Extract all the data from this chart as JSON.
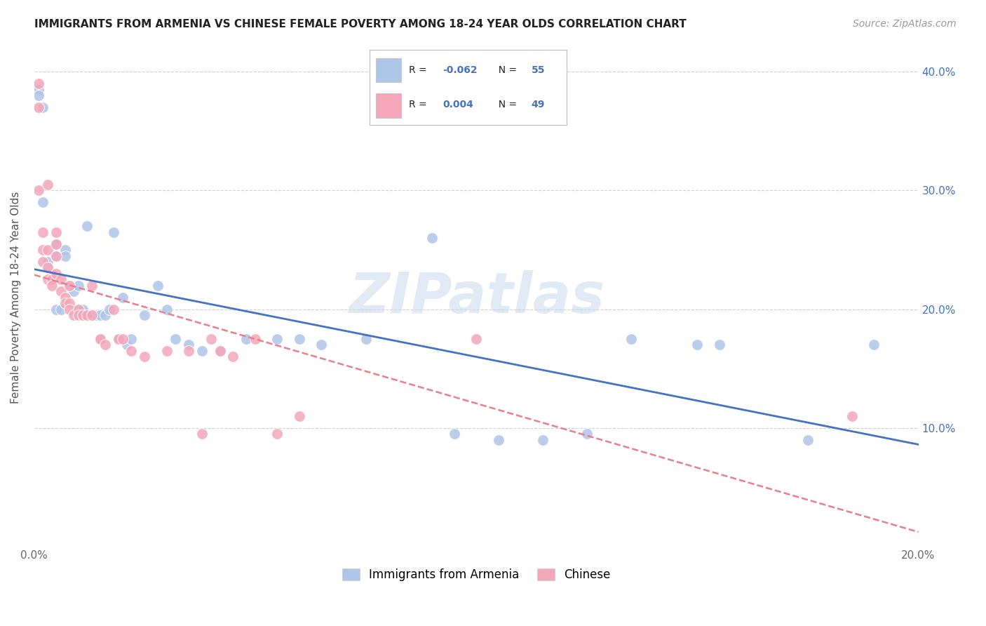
{
  "title": "IMMIGRANTS FROM ARMENIA VS CHINESE FEMALE POVERTY AMONG 18-24 YEAR OLDS CORRELATION CHART",
  "source": "Source: ZipAtlas.com",
  "ylabel": "Female Poverty Among 18-24 Year Olds",
  "xlim": [
    0.0,
    0.2
  ],
  "ylim": [
    0.0,
    0.42
  ],
  "x_ticks": [
    0.0,
    0.02,
    0.04,
    0.06,
    0.08,
    0.1,
    0.12,
    0.14,
    0.16,
    0.18,
    0.2
  ],
  "y_ticks": [
    0.0,
    0.1,
    0.2,
    0.3,
    0.4
  ],
  "legend_entries": [
    {
      "label": "Immigrants from Armenia",
      "color": "#aec6e8",
      "R": "-0.062",
      "N": "55"
    },
    {
      "label": "Chinese",
      "color": "#f4a7b9",
      "R": "0.004",
      "N": "49"
    }
  ],
  "blue_scatter_x": [
    0.001,
    0.001,
    0.002,
    0.002,
    0.003,
    0.003,
    0.003,
    0.004,
    0.004,
    0.005,
    0.005,
    0.005,
    0.006,
    0.007,
    0.007,
    0.008,
    0.009,
    0.01,
    0.01,
    0.011,
    0.012,
    0.012,
    0.013,
    0.013,
    0.014,
    0.015,
    0.016,
    0.017,
    0.018,
    0.019,
    0.02,
    0.021,
    0.022,
    0.025,
    0.028,
    0.03,
    0.032,
    0.035,
    0.038,
    0.042,
    0.048,
    0.055,
    0.06,
    0.065,
    0.075,
    0.09,
    0.095,
    0.105,
    0.115,
    0.125,
    0.135,
    0.15,
    0.155,
    0.175,
    0.19
  ],
  "blue_scatter_y": [
    0.385,
    0.38,
    0.37,
    0.29,
    0.24,
    0.235,
    0.235,
    0.23,
    0.225,
    0.255,
    0.245,
    0.2,
    0.2,
    0.25,
    0.245,
    0.22,
    0.215,
    0.22,
    0.2,
    0.2,
    0.195,
    0.27,
    0.195,
    0.195,
    0.195,
    0.195,
    0.195,
    0.2,
    0.265,
    0.175,
    0.21,
    0.17,
    0.175,
    0.195,
    0.22,
    0.2,
    0.175,
    0.17,
    0.165,
    0.165,
    0.175,
    0.175,
    0.175,
    0.17,
    0.175,
    0.26,
    0.095,
    0.09,
    0.09,
    0.095,
    0.175,
    0.17,
    0.17,
    0.09,
    0.17
  ],
  "pink_scatter_x": [
    0.001,
    0.001,
    0.001,
    0.002,
    0.002,
    0.002,
    0.003,
    0.003,
    0.003,
    0.003,
    0.004,
    0.004,
    0.005,
    0.005,
    0.005,
    0.005,
    0.006,
    0.006,
    0.007,
    0.007,
    0.008,
    0.008,
    0.008,
    0.009,
    0.01,
    0.01,
    0.011,
    0.012,
    0.013,
    0.013,
    0.015,
    0.015,
    0.016,
    0.018,
    0.019,
    0.02,
    0.022,
    0.025,
    0.03,
    0.035,
    0.038,
    0.04,
    0.042,
    0.045,
    0.05,
    0.055,
    0.06,
    0.1,
    0.185
  ],
  "pink_scatter_y": [
    0.39,
    0.37,
    0.3,
    0.265,
    0.25,
    0.24,
    0.305,
    0.25,
    0.235,
    0.225,
    0.225,
    0.22,
    0.265,
    0.255,
    0.245,
    0.23,
    0.225,
    0.215,
    0.21,
    0.205,
    0.22,
    0.205,
    0.2,
    0.195,
    0.2,
    0.195,
    0.195,
    0.195,
    0.22,
    0.195,
    0.175,
    0.175,
    0.17,
    0.2,
    0.175,
    0.175,
    0.165,
    0.16,
    0.165,
    0.165,
    0.095,
    0.175,
    0.165,
    0.16,
    0.175,
    0.095,
    0.11,
    0.175,
    0.11
  ],
  "blue_line_color": "#4472c4",
  "pink_line_color": "#e87f8a",
  "blue_marker_color": "#aec6e8",
  "pink_marker_color": "#f4a7b9",
  "background_color": "#ffffff",
  "grid_color": "#cccccc",
  "watermark": "ZIPatlas",
  "title_fontsize": 11,
  "source_fontsize": 10
}
